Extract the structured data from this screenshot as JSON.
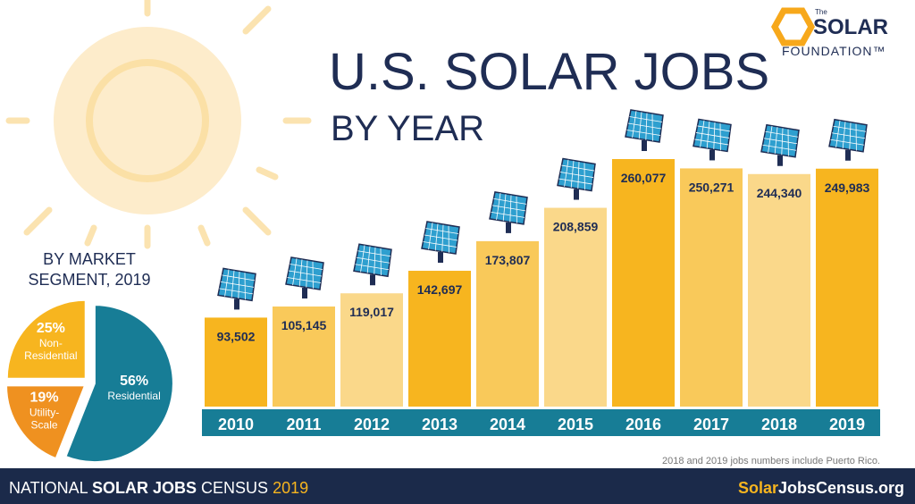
{
  "chart_data": [
    {
      "type": "bar",
      "title": "U.S. SOLAR JOBS",
      "subtitle": "BY YEAR",
      "categories": [
        "2010",
        "2011",
        "2012",
        "2013",
        "2014",
        "2015",
        "2016",
        "2017",
        "2018",
        "2019"
      ],
      "values": [
        93502,
        105145,
        119017,
        142697,
        173807,
        208859,
        260077,
        250271,
        244340,
        249983
      ],
      "value_labels": [
        "93,502",
        "105,145",
        "119,017",
        "142,697",
        "173,807",
        "208,859",
        "260,077",
        "250,271",
        "244,340",
        "249,983"
      ],
      "colors": [
        "#f7b51f",
        "#f9c95a",
        "#fad88a",
        "#f7b51f",
        "#f9c95a",
        "#fad88a",
        "#f7b51f",
        "#f9c95a",
        "#fad88a",
        "#f7b51f"
      ],
      "note": "2018 and 2019 jobs numbers include Puerto Rico."
    },
    {
      "type": "pie",
      "title": [
        "BY MARKET",
        "SEGMENT, 2019"
      ],
      "categories": [
        [
          "Residential"
        ],
        [
          "Utility-",
          "Scale"
        ],
        [
          "Non-",
          "Residential"
        ]
      ],
      "values": [
        56,
        19,
        25
      ],
      "value_labels": [
        "56%",
        "19%",
        "25%"
      ],
      "colors": [
        "#177d96",
        "#ef9120",
        "#f7b51f"
      ]
    }
  ],
  "logo": {
    "small": "The",
    "name": "SOLAR",
    "sub": "FOUNDATION™"
  },
  "footer": {
    "left": [
      "NATIONAL ",
      "SOLAR JOBS",
      " CENSUS ",
      "2019"
    ],
    "right": [
      "Solar",
      "JobsCensus.org"
    ]
  }
}
